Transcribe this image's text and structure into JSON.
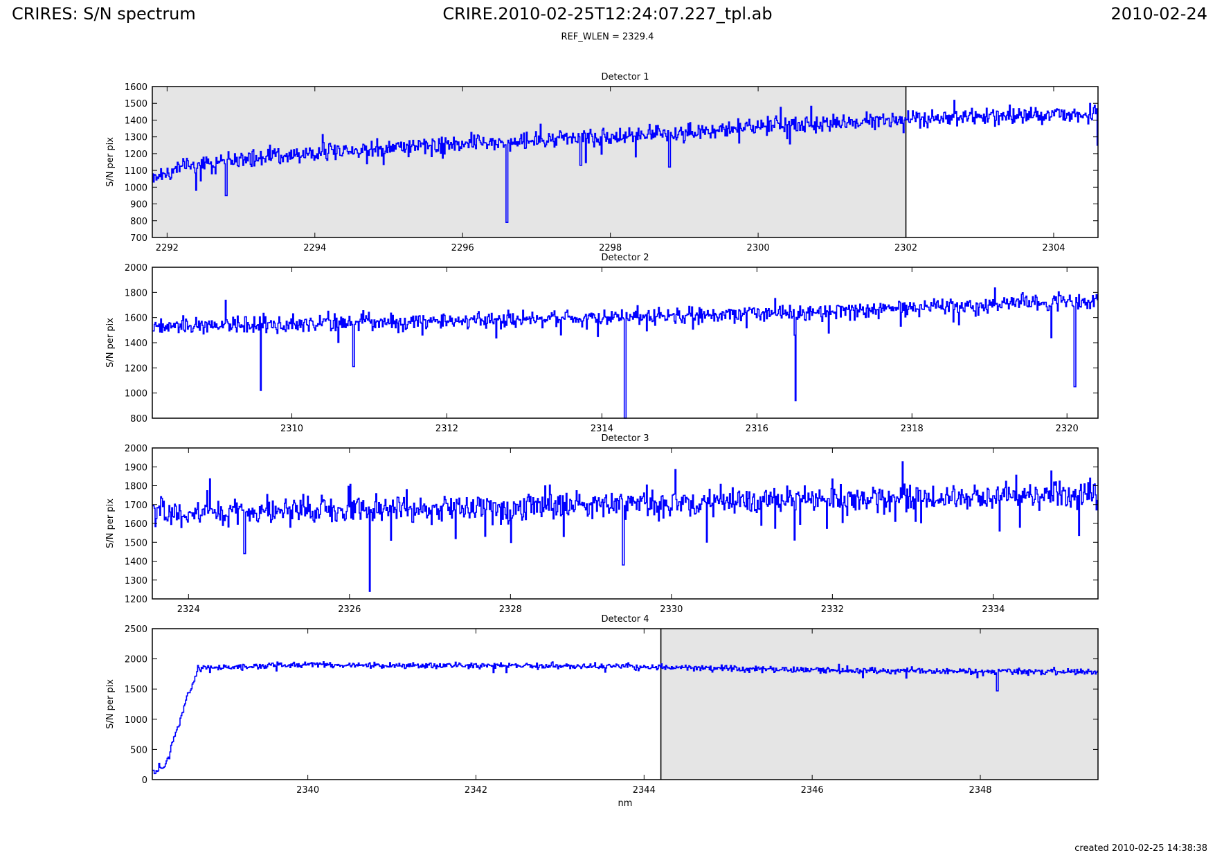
{
  "header": {
    "left_title": "CRIRES: S/N spectrum",
    "center_title": "CRIRE.2010-02-25T12:24:07.227_tpl.ab",
    "right_date": "2010-02-24",
    "subtitle": "REF_WLEN = 2329.4"
  },
  "footer": {
    "created": "created 2010-02-25 14:38:38"
  },
  "colors": {
    "line": "#0000ff",
    "shade": "#e5e5e5",
    "axes": "#000000",
    "background": "#ffffff"
  },
  "chart_data": [
    {
      "type": "line",
      "title": "Detector 1",
      "xlabel": "",
      "ylabel": "S/N per pix",
      "xlim": [
        2291.8,
        2304.6
      ],
      "ylim": [
        700,
        1600
      ],
      "xticks": [
        2292,
        2294,
        2296,
        2298,
        2300,
        2302,
        2304
      ],
      "yticks": [
        700,
        800,
        900,
        1000,
        1100,
        1200,
        1300,
        1400,
        1500,
        1600
      ],
      "shaded_region": [
        2291.8,
        2302.0
      ],
      "grid": false,
      "series": [
        {
          "x_range": [
            2291.8,
            2304.6
          ],
          "n_points": 1024,
          "trend": [
            [
              2291.8,
              1070
            ],
            [
              2292.6,
              1150
            ],
            [
              2295,
              1240
            ],
            [
              2298,
              1300
            ],
            [
              2302,
              1410
            ],
            [
              2304.5,
              1440
            ]
          ],
          "noise": 45,
          "dips": [
            [
              2292.8,
              950
            ],
            [
              2296.6,
              790
            ],
            [
              2297.6,
              1130
            ],
            [
              2298.8,
              1120
            ],
            [
              2304.6,
              1250
            ]
          ]
        }
      ]
    },
    {
      "type": "line",
      "title": "Detector 2",
      "xlabel": "",
      "ylabel": "S/N per pix",
      "xlim": [
        2308.2,
        2320.4
      ],
      "ylim": [
        800,
        2000
      ],
      "xticks": [
        2310,
        2312,
        2314,
        2316,
        2318,
        2320
      ],
      "yticks": [
        800,
        1000,
        1200,
        1400,
        1600,
        1800,
        2000
      ],
      "shaded_region": null,
      "grid": false,
      "series": [
        {
          "x_range": [
            2308.2,
            2320.4
          ],
          "n_points": 1024,
          "trend": [
            [
              2308.2,
              1530
            ],
            [
              2311,
              1560
            ],
            [
              2314,
              1600
            ],
            [
              2317,
              1650
            ],
            [
              2320.4,
              1740
            ]
          ],
          "noise": 55,
          "dips": [
            [
              2309.6,
              1020
            ],
            [
              2310.8,
              1210
            ],
            [
              2314.3,
              800
            ],
            [
              2316.5,
              940
            ],
            [
              2319.8,
              1440
            ],
            [
              2320.1,
              1050
            ]
          ]
        }
      ]
    },
    {
      "type": "line",
      "title": "Detector 3",
      "xlabel": "",
      "ylabel": "S/N per pix",
      "xlim": [
        2323.55,
        2335.3
      ],
      "ylim": [
        1200,
        2000
      ],
      "xticks": [
        2324,
        2326,
        2328,
        2330,
        2332,
        2334
      ],
      "yticks": [
        1200,
        1300,
        1400,
        1500,
        1600,
        1700,
        1800,
        1900,
        2000
      ],
      "shaded_region": null,
      "grid": false,
      "series": [
        {
          "x_range": [
            2323.55,
            2335.3
          ],
          "n_points": 1024,
          "trend": [
            [
              2323.55,
              1650
            ],
            [
              2326,
              1670
            ],
            [
              2329,
              1700
            ],
            [
              2332,
              1730
            ],
            [
              2335.3,
              1750
            ]
          ],
          "noise": 60,
          "dips": [
            [
              2324.7,
              1440
            ],
            [
              2326.25,
              1240
            ],
            [
              2329.4,
              1380
            ]
          ]
        }
      ]
    },
    {
      "type": "line",
      "title": "Detector 4",
      "xlabel": "nm",
      "ylabel": "S/N per pix",
      "xlim": [
        2338.15,
        2349.4
      ],
      "ylim": [
        0,
        2500
      ],
      "xticks": [
        2340,
        2342,
        2344,
        2346,
        2348
      ],
      "yticks": [
        0,
        500,
        1000,
        1500,
        2000,
        2500
      ],
      "shaded_region": [
        2344.2,
        2349.4
      ],
      "grid": false,
      "series": [
        {
          "x_range": [
            2338.15,
            2349.4
          ],
          "n_points": 1024,
          "trend": [
            [
              2338.15,
              100
            ],
            [
              2338.3,
              200
            ],
            [
              2338.45,
              850
            ],
            [
              2338.55,
              1300
            ],
            [
              2338.7,
              1850
            ],
            [
              2340,
              1900
            ],
            [
              2343,
              1880
            ],
            [
              2344.2,
              1860
            ],
            [
              2346,
              1810
            ],
            [
              2349.4,
              1780
            ]
          ],
          "noise": 45,
          "dips": [
            [
              2348.2,
              1470
            ]
          ]
        }
      ]
    }
  ]
}
